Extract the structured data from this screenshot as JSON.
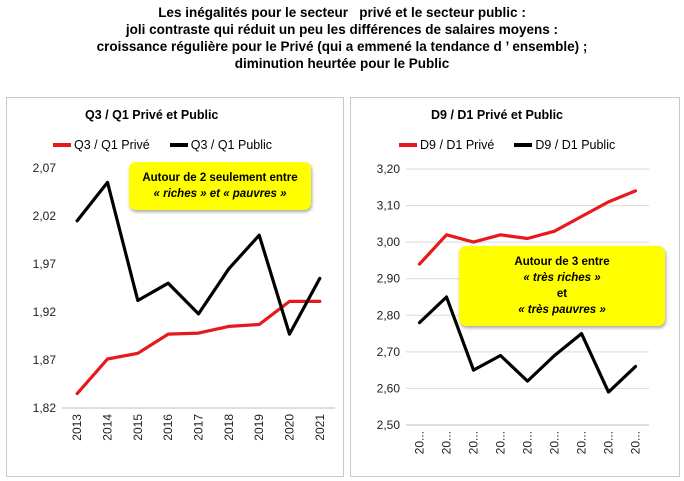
{
  "header": {
    "lines": [
      "Les inégalités pour le secteur   privé et le secteur public :",
      "joli contraste qui réduit un peu les différences de salaires moyens :",
      "croissance régulière pour le Privé (qui a emmené la tendance d ’ ensemble) ;",
      "diminution heurtée pour le Public"
    ]
  },
  "colors": {
    "prive": "#e8191c",
    "public": "#000000",
    "annotation_bg": "#ffff00"
  },
  "left_panel": {
    "title": "Q3 / Q1 Privé et Public",
    "annotation": {
      "line1": "Autour de 2 seulement entre",
      "line2": "« riches » et « pauvres »"
    }
  },
  "right_panel": {
    "title": "D9 / D1 Privé et Public",
    "annotation": {
      "line1": "Autour de 3 entre",
      "line2": "« très riches »",
      "line3": "et",
      "line4": "« très pauvres »"
    }
  },
  "chart_data": [
    {
      "type": "line",
      "title": "Q3 / Q1 Privé et Public",
      "x": [
        "2013",
        "2014",
        "2015",
        "2016",
        "2017",
        "2018",
        "2019",
        "2020",
        "2021"
      ],
      "ylim": [
        1.82,
        2.07
      ],
      "yticks": [
        "1,82",
        "1,87",
        "1,92",
        "1,97",
        "2,02",
        "2,07"
      ],
      "grid": false,
      "legend_position": "top",
      "series": [
        {
          "name": "Q3 / Q1 Privé",
          "color": "#e8191c",
          "values": [
            1.835,
            1.871,
            1.877,
            1.897,
            1.898,
            1.905,
            1.907,
            1.931,
            1.931
          ]
        },
        {
          "name": "Q3 / Q1 Public",
          "color": "#000000",
          "values": [
            2.015,
            2.055,
            1.932,
            1.95,
            1.918,
            1.965,
            2.0,
            1.897,
            1.955
          ]
        }
      ]
    },
    {
      "type": "line",
      "title": "D9 / D1 Privé et Public",
      "x": [
        "20...",
        "20...",
        "20...",
        "20...",
        "20...",
        "20...",
        "20...",
        "20...",
        "20..."
      ],
      "ylim": [
        2.5,
        3.2
      ],
      "yticks": [
        "2,50",
        "2,60",
        "2,70",
        "2,80",
        "2,90",
        "3,00",
        "3,10",
        "3,20"
      ],
      "grid": true,
      "legend_position": "top",
      "series": [
        {
          "name": "D9 / D1 Privé",
          "color": "#e8191c",
          "values": [
            2.94,
            3.02,
            3.0,
            3.02,
            3.01,
            3.03,
            3.07,
            3.11,
            3.14
          ]
        },
        {
          "name": "D9 / D1 Public",
          "color": "#000000",
          "values": [
            2.78,
            2.85,
            2.65,
            2.69,
            2.62,
            2.69,
            2.75,
            2.59,
            2.66
          ]
        }
      ]
    }
  ]
}
